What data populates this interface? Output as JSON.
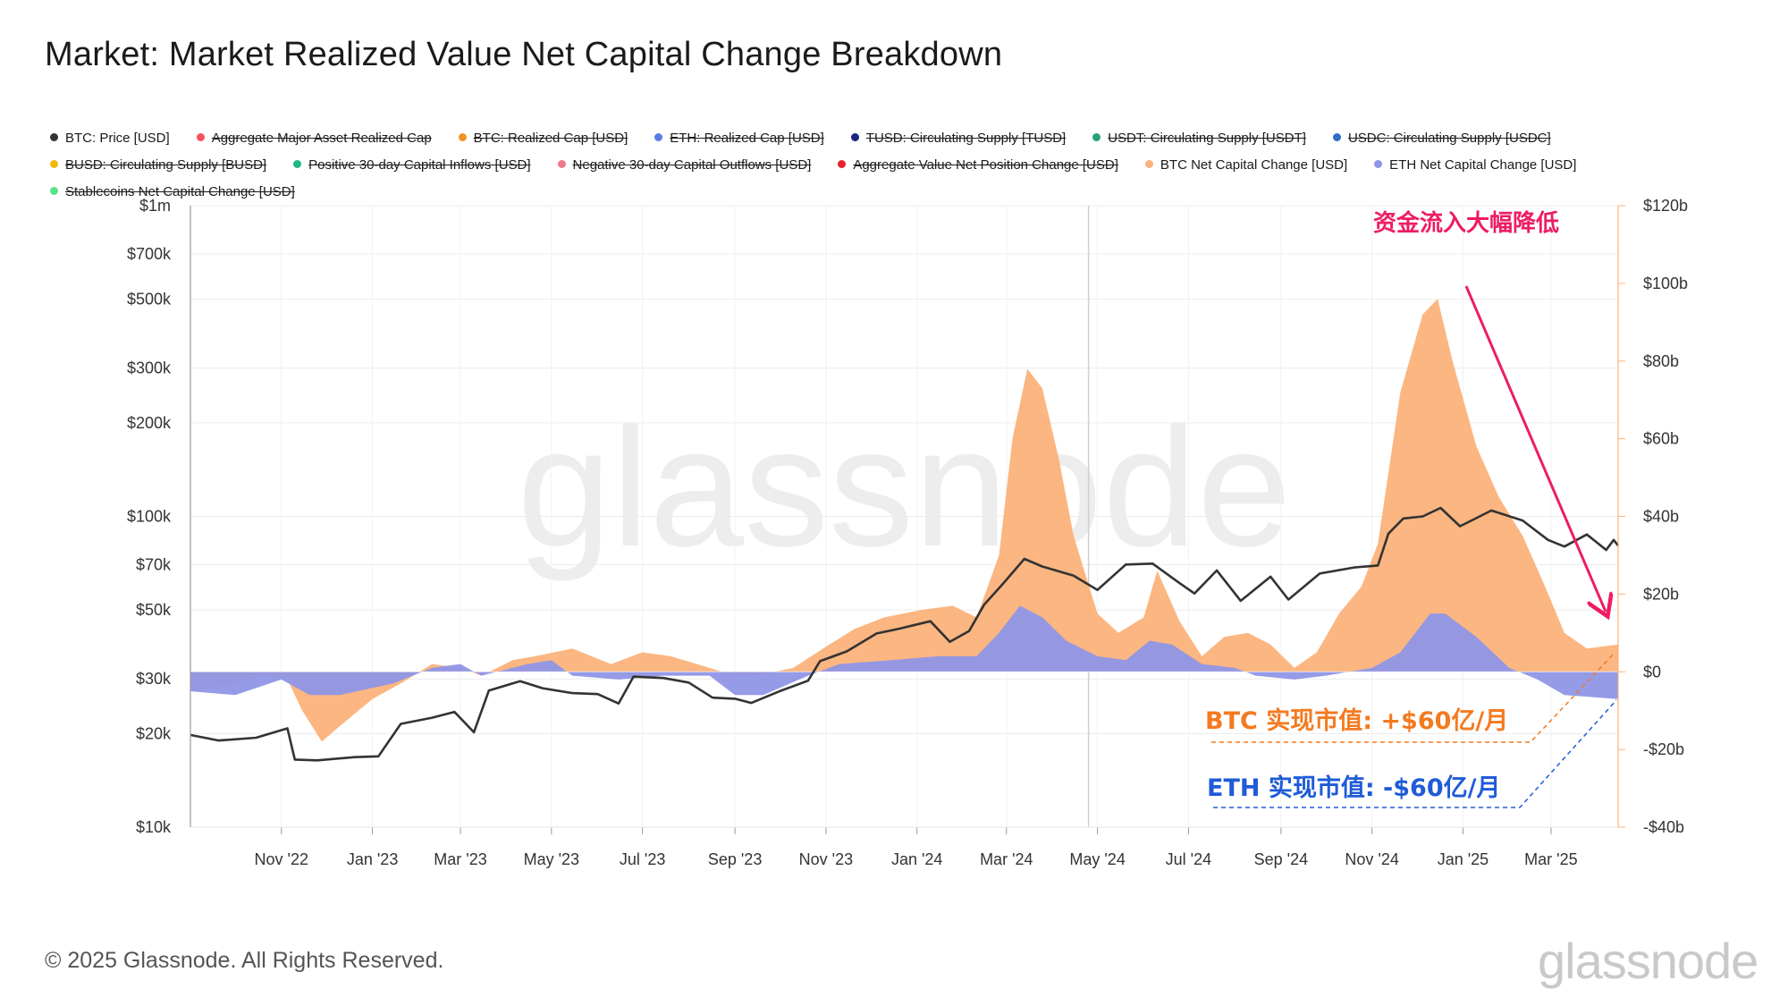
{
  "title": "Market: Market Realized Value Net Capital Change Breakdown",
  "legend": [
    {
      "label": "BTC: Price [USD]",
      "color": "#333333",
      "active": true
    },
    {
      "label": "Aggregate Major Asset Realized Cap",
      "color": "#f4535b",
      "active": false
    },
    {
      "label": "BTC: Realized Cap [USD]",
      "color": "#f39123",
      "active": false
    },
    {
      "label": "ETH: Realized Cap [USD]",
      "color": "#5b7be8",
      "active": false
    },
    {
      "label": "TUSD: Circulating Supply [TUSD]",
      "color": "#1a237e",
      "active": false
    },
    {
      "label": "USDT: Circulating Supply [USDT]",
      "color": "#26a17b",
      "active": false
    },
    {
      "label": "USDC: Circulating Supply [USDC]",
      "color": "#2f6cc9",
      "active": false
    },
    {
      "label": "BUSD: Circulating Supply [BUSD]",
      "color": "#f0b90b",
      "active": false
    },
    {
      "label": "Positive 30-day Capital Inflows [USD]",
      "color": "#1eb980",
      "active": false
    },
    {
      "label": "Negative 30-day Capital Outflows [USD]",
      "color": "#f0788c",
      "active": false
    },
    {
      "label": "Aggregate Value Net Position Change [USD]",
      "color": "#e8202e",
      "active": false
    },
    {
      "label": "BTC Net Capital Change [USD]",
      "color": "#fbb27a",
      "active": true
    },
    {
      "label": "ETH Net Capital Change [USD]",
      "color": "#8f96e6",
      "active": true
    },
    {
      "label": "Stablecoins Net Capital Change [USD]",
      "color": "#57e389",
      "active": false
    }
  ],
  "annotations": {
    "inflow_drop": "资金流入大幅降低",
    "btc_label": "BTC 实现市值: +$60亿/月",
    "eth_label": "ETH 实现市值: -$60亿/月"
  },
  "watermark": "glassnode",
  "footer": {
    "copyright": "© 2025 Glassnode. All Rights Reserved.",
    "logo": "glassnode"
  },
  "colors": {
    "btc_area": "#fbb27a",
    "eth_area": "#8f96e6",
    "price": "#333333",
    "arrow": "#ee1c63",
    "btc_text": "#f47a1f",
    "eth_text": "#1f5bd8"
  },
  "chart_data": {
    "type": "area",
    "x_range": [
      "2022-09-01",
      "2025-04-15"
    ],
    "x_ticks": [
      {
        "label": "Nov '22",
        "date": "2022-11-01"
      },
      {
        "label": "Jan '23",
        "date": "2023-01-01"
      },
      {
        "label": "Mar '23",
        "date": "2023-03-01"
      },
      {
        "label": "May '23",
        "date": "2023-05-01"
      },
      {
        "label": "Jul '23",
        "date": "2023-07-01"
      },
      {
        "label": "Sep '23",
        "date": "2023-09-01"
      },
      {
        "label": "Nov '23",
        "date": "2023-11-01"
      },
      {
        "label": "Jan '24",
        "date": "2024-01-01"
      },
      {
        "label": "Mar '24",
        "date": "2024-03-01"
      },
      {
        "label": "May '24",
        "date": "2024-05-01"
      },
      {
        "label": "Jul '24",
        "date": "2024-07-01"
      },
      {
        "label": "Sep '24",
        "date": "2024-09-01"
      },
      {
        "label": "Nov '24",
        "date": "2024-11-01"
      },
      {
        "label": "Jan '25",
        "date": "2025-01-01"
      },
      {
        "label": "Mar '25",
        "date": "2025-03-01"
      }
    ],
    "y_left": {
      "scale": "log",
      "range": [
        10000,
        1000000
      ],
      "ticks": [
        {
          "label": "$1m",
          "value": 1000000
        },
        {
          "label": "$700k",
          "value": 700000
        },
        {
          "label": "$500k",
          "value": 500000
        },
        {
          "label": "$300k",
          "value": 300000
        },
        {
          "label": "$200k",
          "value": 200000
        },
        {
          "label": "$100k",
          "value": 100000
        },
        {
          "label": "$70k",
          "value": 70000
        },
        {
          "label": "$50k",
          "value": 50000
        },
        {
          "label": "$30k",
          "value": 30000
        },
        {
          "label": "$20k",
          "value": 20000
        },
        {
          "label": "$10k",
          "value": 10000
        }
      ]
    },
    "y_right": {
      "scale": "linear",
      "unit": "USD billions",
      "range": [
        -40,
        120
      ],
      "ticks": [
        {
          "label": "$120b",
          "value": 120
        },
        {
          "label": "$100b",
          "value": 100
        },
        {
          "label": "$80b",
          "value": 80
        },
        {
          "label": "$60b",
          "value": 60
        },
        {
          "label": "$40b",
          "value": 40
        },
        {
          "label": "$20b",
          "value": 20
        },
        {
          "label": "$0",
          "value": 0
        },
        {
          "label": "-$20b",
          "value": -20
        },
        {
          "label": "-$40b",
          "value": -40
        }
      ]
    },
    "series": [
      {
        "name": "BTC: Price [USD]",
        "axis": "left",
        "style": "line",
        "points": [
          [
            "2022-09-01",
            19800
          ],
          [
            "2022-09-20",
            19000
          ],
          [
            "2022-10-15",
            19400
          ],
          [
            "2022-11-05",
            20800
          ],
          [
            "2022-11-10",
            16500
          ],
          [
            "2022-11-25",
            16400
          ],
          [
            "2022-12-20",
            16800
          ],
          [
            "2023-01-05",
            16900
          ],
          [
            "2023-01-20",
            21500
          ],
          [
            "2023-02-10",
            22500
          ],
          [
            "2023-02-25",
            23500
          ],
          [
            "2023-03-10",
            20200
          ],
          [
            "2023-03-20",
            27500
          ],
          [
            "2023-04-10",
            29500
          ],
          [
            "2023-04-25",
            28000
          ],
          [
            "2023-05-15",
            27000
          ],
          [
            "2023-06-01",
            26800
          ],
          [
            "2023-06-15",
            25000
          ],
          [
            "2023-06-25",
            30500
          ],
          [
            "2023-07-15",
            30200
          ],
          [
            "2023-08-01",
            29200
          ],
          [
            "2023-08-17",
            26100
          ],
          [
            "2023-09-01",
            25900
          ],
          [
            "2023-09-12",
            25100
          ],
          [
            "2023-10-01",
            27400
          ],
          [
            "2023-10-20",
            29600
          ],
          [
            "2023-10-28",
            34200
          ],
          [
            "2023-11-15",
            36800
          ],
          [
            "2023-12-05",
            42000
          ],
          [
            "2023-12-20",
            43500
          ],
          [
            "2024-01-10",
            46000
          ],
          [
            "2024-01-23",
            39500
          ],
          [
            "2024-02-05",
            42800
          ],
          [
            "2024-02-15",
            52000
          ],
          [
            "2024-02-28",
            61000
          ],
          [
            "2024-03-13",
            73000
          ],
          [
            "2024-03-25",
            69000
          ],
          [
            "2024-04-15",
            64500
          ],
          [
            "2024-05-01",
            58000
          ],
          [
            "2024-05-20",
            70000
          ],
          [
            "2024-06-07",
            70500
          ],
          [
            "2024-06-25",
            61000
          ],
          [
            "2024-07-05",
            56500
          ],
          [
            "2024-07-20",
            67000
          ],
          [
            "2024-08-05",
            53500
          ],
          [
            "2024-08-25",
            64000
          ],
          [
            "2024-09-06",
            54000
          ],
          [
            "2024-09-27",
            65500
          ],
          [
            "2024-10-20",
            68500
          ],
          [
            "2024-11-05",
            69500
          ],
          [
            "2024-11-12",
            88000
          ],
          [
            "2024-11-22",
            98500
          ],
          [
            "2024-12-05",
            100000
          ],
          [
            "2024-12-17",
            106500
          ],
          [
            "2024-12-30",
            93000
          ],
          [
            "2025-01-20",
            104500
          ],
          [
            "2025-02-10",
            97000
          ],
          [
            "2025-02-27",
            84000
          ],
          [
            "2025-03-10",
            80000
          ],
          [
            "2025-03-25",
            87500
          ],
          [
            "2025-04-07",
            78000
          ],
          [
            "2025-04-12",
            84000
          ],
          [
            "2025-04-15",
            80500
          ]
        ]
      },
      {
        "name": "BTC Net Capital Change [USD]",
        "axis": "right",
        "style": "area",
        "points": [
          [
            "2022-09-01",
            -5
          ],
          [
            "2022-10-01",
            -3
          ],
          [
            "2022-10-20",
            -1
          ],
          [
            "2022-11-05",
            -2
          ],
          [
            "2022-11-15",
            -10
          ],
          [
            "2022-11-28",
            -18
          ],
          [
            "2022-12-10",
            -14
          ],
          [
            "2023-01-01",
            -7
          ],
          [
            "2023-01-20",
            -3
          ],
          [
            "2023-02-10",
            2
          ],
          [
            "2023-03-01",
            1
          ],
          [
            "2023-03-15",
            -1
          ],
          [
            "2023-04-05",
            3
          ],
          [
            "2023-04-20",
            4
          ],
          [
            "2023-05-15",
            6
          ],
          [
            "2023-06-10",
            2
          ],
          [
            "2023-07-01",
            5
          ],
          [
            "2023-07-20",
            4
          ],
          [
            "2023-08-15",
            1
          ],
          [
            "2023-09-01",
            -1
          ],
          [
            "2023-09-15",
            -1
          ],
          [
            "2023-10-10",
            1
          ],
          [
            "2023-10-30",
            6
          ],
          [
            "2023-11-20",
            11
          ],
          [
            "2023-12-10",
            14
          ],
          [
            "2024-01-05",
            16
          ],
          [
            "2024-01-25",
            17
          ],
          [
            "2024-02-10",
            14
          ],
          [
            "2024-02-25",
            30
          ],
          [
            "2024-03-05",
            60
          ],
          [
            "2024-03-15",
            78
          ],
          [
            "2024-03-25",
            73
          ],
          [
            "2024-04-05",
            55
          ],
          [
            "2024-04-15",
            35
          ],
          [
            "2024-05-01",
            15
          ],
          [
            "2024-05-15",
            10
          ],
          [
            "2024-06-01",
            14
          ],
          [
            "2024-06-10",
            26
          ],
          [
            "2024-06-25",
            13
          ],
          [
            "2024-07-10",
            4
          ],
          [
            "2024-07-25",
            9
          ],
          [
            "2024-08-10",
            10
          ],
          [
            "2024-08-25",
            7
          ],
          [
            "2024-09-10",
            1
          ],
          [
            "2024-09-25",
            5
          ],
          [
            "2024-10-10",
            15
          ],
          [
            "2024-10-25",
            22
          ],
          [
            "2024-11-05",
            33
          ],
          [
            "2024-11-20",
            72
          ],
          [
            "2024-12-05",
            92
          ],
          [
            "2024-12-15",
            96
          ],
          [
            "2024-12-25",
            80
          ],
          [
            "2025-01-10",
            58
          ],
          [
            "2025-01-25",
            45
          ],
          [
            "2025-02-10",
            35
          ],
          [
            "2025-02-25",
            22
          ],
          [
            "2025-03-10",
            10
          ],
          [
            "2025-03-25",
            6
          ],
          [
            "2025-04-15",
            7
          ]
        ]
      },
      {
        "name": "ETH Net Capital Change [USD]",
        "axis": "right",
        "style": "area",
        "points": [
          [
            "2022-09-01",
            -5
          ],
          [
            "2022-10-01",
            -6
          ],
          [
            "2022-11-01",
            -2
          ],
          [
            "2022-11-20",
            -6
          ],
          [
            "2022-12-10",
            -6
          ],
          [
            "2023-01-15",
            -3
          ],
          [
            "2023-02-10",
            1
          ],
          [
            "2023-03-01",
            2
          ],
          [
            "2023-03-15",
            -1
          ],
          [
            "2023-04-15",
            2
          ],
          [
            "2023-05-01",
            3
          ],
          [
            "2023-05-15",
            -1
          ],
          [
            "2023-06-15",
            -2
          ],
          [
            "2023-07-15",
            -1
          ],
          [
            "2023-08-15",
            -1
          ],
          [
            "2023-09-01",
            -6
          ],
          [
            "2023-09-20",
            -6
          ],
          [
            "2023-10-20",
            -1
          ],
          [
            "2023-11-10",
            2
          ],
          [
            "2023-12-15",
            3
          ],
          [
            "2024-01-15",
            4
          ],
          [
            "2024-02-10",
            4
          ],
          [
            "2024-02-25",
            10
          ],
          [
            "2024-03-10",
            17
          ],
          [
            "2024-03-25",
            14
          ],
          [
            "2024-04-10",
            8
          ],
          [
            "2024-05-01",
            4
          ],
          [
            "2024-05-20",
            3
          ],
          [
            "2024-06-05",
            8
          ],
          [
            "2024-06-20",
            7
          ],
          [
            "2024-07-10",
            2
          ],
          [
            "2024-08-01",
            1
          ],
          [
            "2024-08-15",
            -1
          ],
          [
            "2024-09-10",
            -2
          ],
          [
            "2024-10-01",
            -1
          ],
          [
            "2024-11-01",
            1
          ],
          [
            "2024-11-20",
            5
          ],
          [
            "2024-12-10",
            15
          ],
          [
            "2024-12-20",
            15
          ],
          [
            "2025-01-10",
            9
          ],
          [
            "2025-02-01",
            1
          ],
          [
            "2025-02-20",
            -2
          ],
          [
            "2025-03-10",
            -6
          ],
          [
            "2025-04-15",
            -7
          ]
        ]
      }
    ]
  }
}
